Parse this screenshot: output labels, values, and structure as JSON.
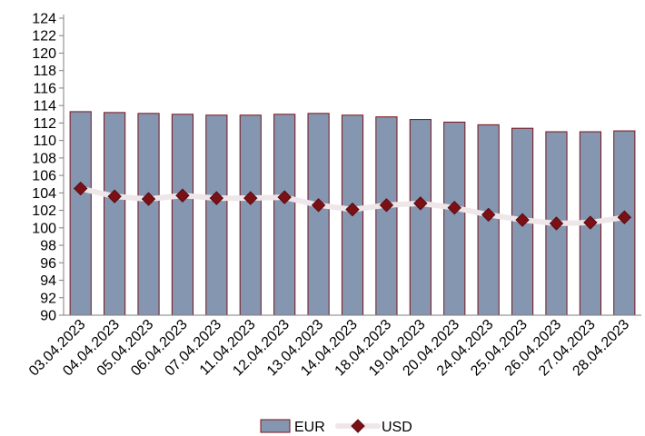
{
  "chart_data": {
    "type": "bar",
    "categories": [
      "03.04.2023",
      "04.04.2023",
      "05.04.2023",
      "06.04.2023",
      "07.04.2023",
      "11.04.2023",
      "12.04.2023",
      "13.04.2023",
      "14.04.2023",
      "18.04.2023",
      "19.04.2023",
      "20.04.2023",
      "24.04.2023",
      "25.04.2023",
      "26.04.2023",
      "27.04.2023",
      "28.04.2023"
    ],
    "series": [
      {
        "name": "EUR",
        "type": "bar",
        "color": "#8496B0",
        "values": [
          113.3,
          113.2,
          113.1,
          113.0,
          112.9,
          112.9,
          113.0,
          113.1,
          112.9,
          112.7,
          112.4,
          112.1,
          111.8,
          111.4,
          111.0,
          111.0,
          111.1
        ]
      },
      {
        "name": "USD",
        "type": "line",
        "color": "#7B1116",
        "line_color": "#EFE6EA",
        "values": [
          104.5,
          103.6,
          103.3,
          103.7,
          103.4,
          103.4,
          103.5,
          102.6,
          102.1,
          102.6,
          102.8,
          102.3,
          101.5,
          100.9,
          100.5,
          100.6,
          101.2
        ]
      }
    ],
    "ylim": [
      90,
      124
    ],
    "yticks": [
      90,
      92,
      94,
      96,
      98,
      100,
      102,
      104,
      106,
      108,
      110,
      112,
      114,
      116,
      118,
      120,
      122,
      124
    ],
    "grid": false,
    "legend": "bottom",
    "title": "",
    "xlabel": "",
    "ylabel": ""
  }
}
